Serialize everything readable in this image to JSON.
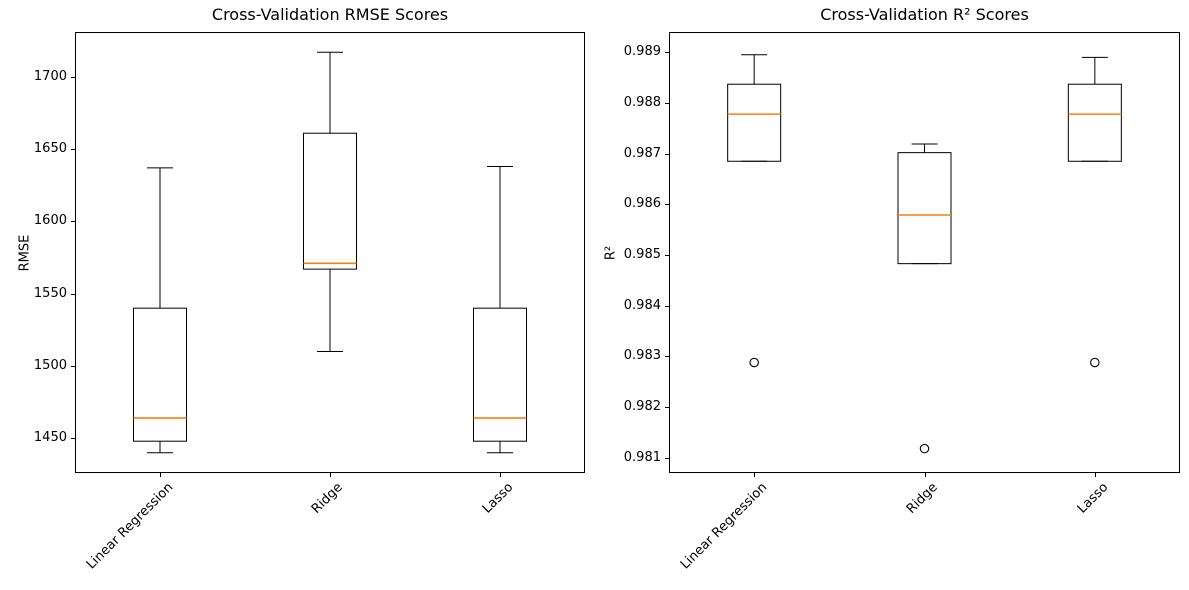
{
  "figure": {
    "background": "#ffffff"
  },
  "colors": {
    "axis": "#000000",
    "text": "#000000",
    "box_edge": "#000000",
    "median": "#ff7f0e",
    "outlier_edge": "#000000"
  },
  "chart_data": [
    {
      "type": "box",
      "title": "Cross-Validation RMSE Scores",
      "ylabel": "RMSE",
      "categories": [
        "Linear Regression",
        "Ridge",
        "Lasso"
      ],
      "xlim": [
        0.5,
        3.5
      ],
      "ylim": [
        1426,
        1731
      ],
      "grid": false,
      "legend": "none",
      "yticks": [
        {
          "value": 1450,
          "label": "1450"
        },
        {
          "value": 1500,
          "label": "1500"
        },
        {
          "value": 1550,
          "label": "1550"
        },
        {
          "value": 1600,
          "label": "1600"
        },
        {
          "value": 1650,
          "label": "1650"
        },
        {
          "value": 1700,
          "label": "1700"
        }
      ],
      "boxes": [
        {
          "category": "Linear Regression",
          "whisker_low": 1440,
          "q1": 1448,
          "median": 1464,
          "q3": 1540,
          "whisker_high": 1637,
          "outliers": []
        },
        {
          "category": "Ridge",
          "whisker_low": 1510,
          "q1": 1567,
          "median": 1571,
          "q3": 1661,
          "whisker_high": 1717,
          "outliers": []
        },
        {
          "category": "Lasso",
          "whisker_low": 1440,
          "q1": 1448,
          "median": 1464,
          "q3": 1540,
          "whisker_high": 1638,
          "outliers": []
        }
      ]
    },
    {
      "type": "box",
      "title": "Cross-Validation R² Scores",
      "ylabel": "R²",
      "categories": [
        "Linear Regression",
        "Ridge",
        "Lasso"
      ],
      "xlim": [
        0.5,
        3.5
      ],
      "ylim": [
        0.9807,
        0.9894
      ],
      "grid": false,
      "legend": "none",
      "yticks": [
        {
          "value": 0.981,
          "label": "0.981"
        },
        {
          "value": 0.982,
          "label": "0.982"
        },
        {
          "value": 0.983,
          "label": "0.983"
        },
        {
          "value": 0.984,
          "label": "0.984"
        },
        {
          "value": 0.985,
          "label": "0.985"
        },
        {
          "value": 0.986,
          "label": "0.986"
        },
        {
          "value": 0.987,
          "label": "0.987"
        },
        {
          "value": 0.988,
          "label": "0.988"
        },
        {
          "value": 0.989,
          "label": "0.989"
        }
      ],
      "boxes": [
        {
          "category": "Linear Regression",
          "whisker_low": 0.98685,
          "q1": 0.98685,
          "median": 0.98778,
          "q3": 0.98837,
          "whisker_high": 0.98895,
          "outliers": [
            0.98288
          ]
        },
        {
          "category": "Ridge",
          "whisker_low": 0.98483,
          "q1": 0.98483,
          "median": 0.98579,
          "q3": 0.98702,
          "whisker_high": 0.98719,
          "outliers": [
            0.98118
          ]
        },
        {
          "category": "Lasso",
          "whisker_low": 0.98685,
          "q1": 0.98685,
          "median": 0.98778,
          "q3": 0.98837,
          "whisker_high": 0.9889,
          "outliers": [
            0.98288
          ]
        }
      ]
    }
  ]
}
